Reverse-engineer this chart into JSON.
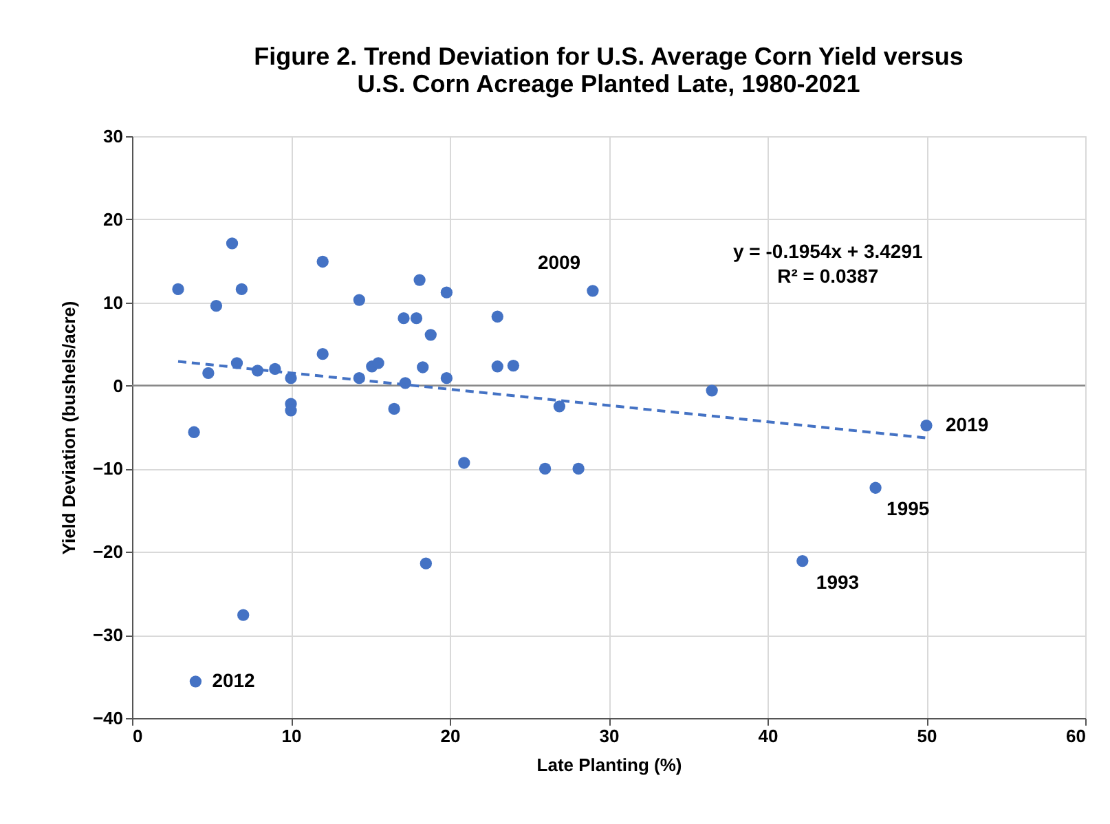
{
  "chart_data": {
    "type": "scatter",
    "title": "Figure 2. Trend Deviation for U.S. Average Corn Yield versus U.S. Corn Acreage Planted Late, 1980-2021",
    "xlabel": "Late Planting (%)",
    "ylabel": "Yield Deviation (bushels/acre)",
    "xlim": [
      0,
      60
    ],
    "xticks": [
      0,
      10,
      20,
      30,
      40,
      50,
      60
    ],
    "ylim": [
      -40,
      30
    ],
    "yticks": [
      -40,
      -30,
      -20,
      -10,
      0,
      10,
      20,
      30
    ],
    "grid": true,
    "marker": "circle",
    "ref_lines": [
      {
        "axis": "y",
        "value": 0,
        "color": "#888888"
      }
    ],
    "series": [
      {
        "color": "#4472c4",
        "x": [
          2.9,
          3.9,
          4.8,
          5.3,
          6.3,
          6.6,
          6.9,
          7.0,
          7.9,
          9,
          10,
          10,
          10,
          12,
          12,
          14.3,
          14.3,
          15.1,
          15.5,
          16.5,
          17.1,
          17.2,
          17.9,
          18.1,
          18.3,
          18.5,
          18.8,
          19.8,
          19.8,
          20.9,
          23,
          23,
          24,
          26,
          26.9,
          28.1,
          29,
          36.5,
          42.2,
          46.8,
          50,
          4
        ],
        "values": [
          11.6,
          -5.6,
          1.5,
          9.6,
          17.1,
          2.7,
          11.6,
          -27.6,
          1.8,
          2,
          0.9,
          -2.2,
          -3,
          14.9,
          3.8,
          10.3,
          0.9,
          2.3,
          2.7,
          -2.8,
          8.1,
          0.3,
          8.1,
          12.7,
          2.2,
          -21.4,
          6.1,
          11.2,
          0.9,
          -9.3,
          8.3,
          2.3,
          2.4,
          -10,
          -2.5,
          -10,
          11.4,
          -0.6,
          -21.1,
          -12.3,
          -4.8,
          -35.6
        ]
      },
      {
        "type": "line",
        "line_style": "dashed",
        "marker": "none",
        "color": "#4472c4",
        "x": [
          2.9,
          50
        ],
        "values": [
          2.9,
          -6.3
        ]
      }
    ],
    "annotations": [
      {
        "text": "2009",
        "x": 29,
        "y": 11.4
      },
      {
        "text": "2012",
        "x": 4,
        "y": -35.6
      },
      {
        "text": "2019",
        "x": 50,
        "y": -4.8
      },
      {
        "text": "1995",
        "x": 46.8,
        "y": -12.3
      },
      {
        "text": "1993",
        "x": 42.2,
        "y": -21.1
      },
      "y = -0.1954x + 3.4291",
      "R² = 0.0387"
    ]
  }
}
